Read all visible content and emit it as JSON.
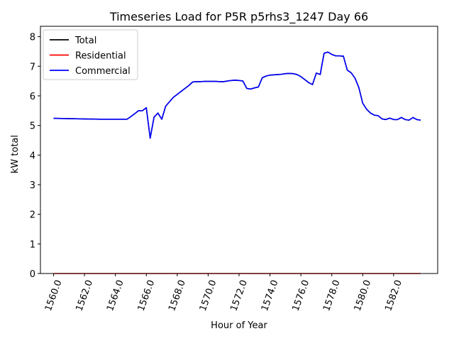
{
  "chart_data": {
    "type": "line",
    "title": "Timeseries Load for P5R p5rhs3_1247  Day 66",
    "xlabel": "Hour of Year",
    "ylabel": "kW total",
    "xlim": [
      1559.15,
      1584.85
    ],
    "ylim": [
      0,
      8.35
    ],
    "x_ticks": [
      1560,
      1562,
      1564,
      1566,
      1568,
      1570,
      1572,
      1574,
      1576,
      1578,
      1580,
      1582
    ],
    "x_tick_labels": [
      "1560.0",
      "1562.0",
      "1564.0",
      "1566.0",
      "1568.0",
      "1570.0",
      "1572.0",
      "1574.0",
      "1576.0",
      "1578.0",
      "1580.0",
      "1582.0"
    ],
    "y_ticks": [
      0,
      1,
      2,
      3,
      4,
      5,
      6,
      7,
      8
    ],
    "y_tick_labels": [
      "0",
      "1",
      "2",
      "3",
      "4",
      "5",
      "6",
      "7",
      "8"
    ],
    "grid": false,
    "legend_position": "top-left",
    "series": [
      {
        "name": "Total",
        "color": "#000000",
        "x": [
          1560,
          1562,
          1563,
          1564,
          1564.75,
          1565,
          1565.25,
          1565.5,
          1565.75,
          1566,
          1566.25,
          1566.5,
          1566.75,
          1567,
          1567.25,
          1567.5,
          1567.75,
          1568,
          1568.25,
          1568.5,
          1568.75,
          1569,
          1569.25,
          1569.5,
          1569.75,
          1570,
          1570.25,
          1570.5,
          1570.75,
          1571,
          1571.25,
          1571.5,
          1571.75,
          1572,
          1572.25,
          1572.5,
          1572.75,
          1573,
          1573.25,
          1573.5,
          1573.75,
          1574,
          1574.25,
          1574.5,
          1574.75,
          1575,
          1575.25,
          1575.5,
          1575.75,
          1576,
          1576.25,
          1576.5,
          1576.75,
          1577,
          1577.25,
          1577.5,
          1577.75,
          1578,
          1578.25,
          1578.5,
          1578.75,
          1579,
          1579.25,
          1579.5,
          1579.75,
          1580,
          1580.25,
          1580.5,
          1580.75,
          1581,
          1581.25,
          1581.5,
          1581.75,
          1582,
          1582.25,
          1582.5,
          1582.75,
          1583,
          1583.25,
          1583.5,
          1583.75
        ],
        "values": [
          5.24,
          5.22,
          5.21,
          5.21,
          5.21,
          5.3,
          5.4,
          5.5,
          5.5,
          5.6,
          4.57,
          5.28,
          5.42,
          5.21,
          5.65,
          5.8,
          5.95,
          6.05,
          6.15,
          6.25,
          6.35,
          6.47,
          6.48,
          6.48,
          6.49,
          6.49,
          6.49,
          6.49,
          6.48,
          6.48,
          6.5,
          6.52,
          6.53,
          6.52,
          6.5,
          6.25,
          6.23,
          6.27,
          6.3,
          6.61,
          6.67,
          6.7,
          6.71,
          6.72,
          6.73,
          6.75,
          6.76,
          6.75,
          6.72,
          6.65,
          6.55,
          6.45,
          6.38,
          6.77,
          6.72,
          7.44,
          7.48,
          7.4,
          7.35,
          7.35,
          7.34,
          6.87,
          6.78,
          6.6,
          6.28,
          5.75,
          5.55,
          5.42,
          5.35,
          5.33,
          5.22,
          5.2,
          5.25,
          5.2,
          5.2,
          5.27,
          5.2,
          5.18,
          5.27,
          5.2,
          5.18
        ]
      },
      {
        "name": "Residential",
        "color": "#ff0000",
        "x": [
          1560,
          1583.75
        ],
        "values": [
          0,
          0
        ]
      },
      {
        "name": "Commercial",
        "color": "#0000ff",
        "x": [
          1560,
          1562,
          1563,
          1564,
          1564.75,
          1565,
          1565.25,
          1565.5,
          1565.75,
          1566,
          1566.25,
          1566.5,
          1566.75,
          1567,
          1567.25,
          1567.5,
          1567.75,
          1568,
          1568.25,
          1568.5,
          1568.75,
          1569,
          1569.25,
          1569.5,
          1569.75,
          1570,
          1570.25,
          1570.5,
          1570.75,
          1571,
          1571.25,
          1571.5,
          1571.75,
          1572,
          1572.25,
          1572.5,
          1572.75,
          1573,
          1573.25,
          1573.5,
          1573.75,
          1574,
          1574.25,
          1574.5,
          1574.75,
          1575,
          1575.25,
          1575.5,
          1575.75,
          1576,
          1576.25,
          1576.5,
          1576.75,
          1577,
          1577.25,
          1577.5,
          1577.75,
          1578,
          1578.25,
          1578.5,
          1578.75,
          1579,
          1579.25,
          1579.5,
          1579.75,
          1580,
          1580.25,
          1580.5,
          1580.75,
          1581,
          1581.25,
          1581.5,
          1581.75,
          1582,
          1582.25,
          1582.5,
          1582.75,
          1583,
          1583.25,
          1583.5,
          1583.75
        ],
        "values": [
          5.24,
          5.22,
          5.21,
          5.21,
          5.21,
          5.3,
          5.4,
          5.5,
          5.5,
          5.6,
          4.57,
          5.28,
          5.42,
          5.21,
          5.65,
          5.8,
          5.95,
          6.05,
          6.15,
          6.25,
          6.35,
          6.47,
          6.48,
          6.48,
          6.49,
          6.49,
          6.49,
          6.49,
          6.48,
          6.48,
          6.5,
          6.52,
          6.53,
          6.52,
          6.5,
          6.25,
          6.23,
          6.27,
          6.3,
          6.61,
          6.67,
          6.7,
          6.71,
          6.72,
          6.73,
          6.75,
          6.76,
          6.75,
          6.72,
          6.65,
          6.55,
          6.45,
          6.38,
          6.77,
          6.72,
          7.44,
          7.48,
          7.4,
          7.35,
          7.35,
          7.34,
          6.87,
          6.78,
          6.6,
          6.28,
          5.75,
          5.55,
          5.42,
          5.35,
          5.33,
          5.22,
          5.2,
          5.25,
          5.2,
          5.2,
          5.27,
          5.2,
          5.18,
          5.27,
          5.2,
          5.18
        ]
      }
    ]
  }
}
